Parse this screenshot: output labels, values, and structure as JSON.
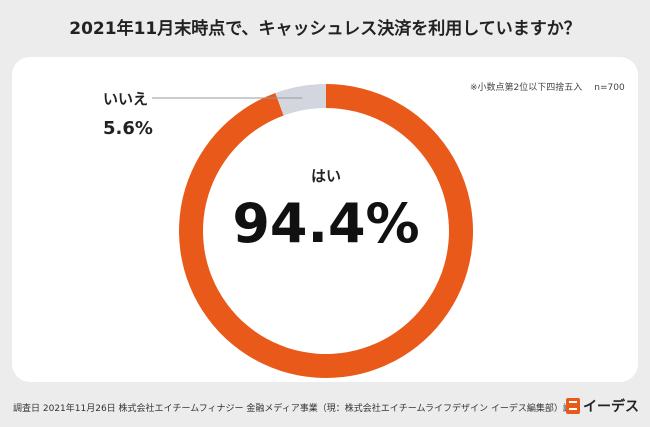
{
  "title": "2021年11月末時点で、キャッシュレス決済を利用していますか？",
  "note": "※小数点第2位以下四捨五入",
  "sample": "n=700",
  "colors": {
    "yes": "#e8591a",
    "no": "#d3d6de",
    "leader": "#999999"
  },
  "chart_data": {
    "type": "pie",
    "categories": [
      "はい",
      "いいえ"
    ],
    "values": [
      94.4,
      5.6
    ],
    "labels": [
      "94.4%",
      "5.6%"
    ]
  },
  "footer": "調査日 2021年11月26日  株式会社エイチームフィナジー 金融メディア事業（現：株式会社エイチームライフデザイン イーデス編集部）調べ",
  "logo": {
    "text": "イーデス",
    "icon": "edesu-logo-icon"
  }
}
